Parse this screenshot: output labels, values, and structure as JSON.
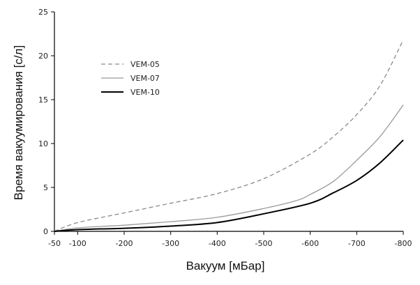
{
  "chart_data": {
    "type": "line",
    "title": "",
    "xlabel": "Вакуум [мБар]",
    "ylabel": "Время вакуумирования [с/л]",
    "xlim": [
      -50,
      -800
    ],
    "ylim": [
      0,
      25
    ],
    "xticks": [
      -50,
      -100,
      -200,
      -300,
      -400,
      -500,
      -600,
      -700,
      -800
    ],
    "yticks": [
      0,
      5,
      10,
      15,
      20,
      25
    ],
    "grid": false,
    "legend_position": "upper-left",
    "series": [
      {
        "name": "VEM-05",
        "style": "dashed",
        "color": "#8a8a8a",
        "x": [
          -50,
          -100,
          -200,
          -300,
          -400,
          -500,
          -600,
          -650,
          -700,
          -750,
          -800
        ],
        "y": [
          0,
          1.0,
          2.1,
          3.2,
          4.3,
          6.0,
          8.8,
          10.8,
          13.3,
          16.6,
          21.8
        ]
      },
      {
        "name": "VEM-07",
        "style": "solid",
        "color": "#9a9a9a",
        "x": [
          -50,
          -100,
          -200,
          -300,
          -400,
          -500,
          -570,
          -600,
          -650,
          -700,
          -750,
          -800
        ],
        "y": [
          0,
          0.4,
          0.7,
          1.1,
          1.6,
          2.6,
          3.5,
          4.2,
          5.7,
          8.1,
          10.8,
          14.4
        ]
      },
      {
        "name": "VEM-10",
        "style": "solid",
        "color": "#000000",
        "x": [
          -50,
          -100,
          -200,
          -300,
          -400,
          -500,
          -600,
          -650,
          -700,
          -750,
          -800
        ],
        "y": [
          0,
          0.2,
          0.35,
          0.6,
          1.0,
          2.0,
          3.2,
          4.4,
          5.8,
          7.8,
          10.4
        ]
      }
    ]
  }
}
